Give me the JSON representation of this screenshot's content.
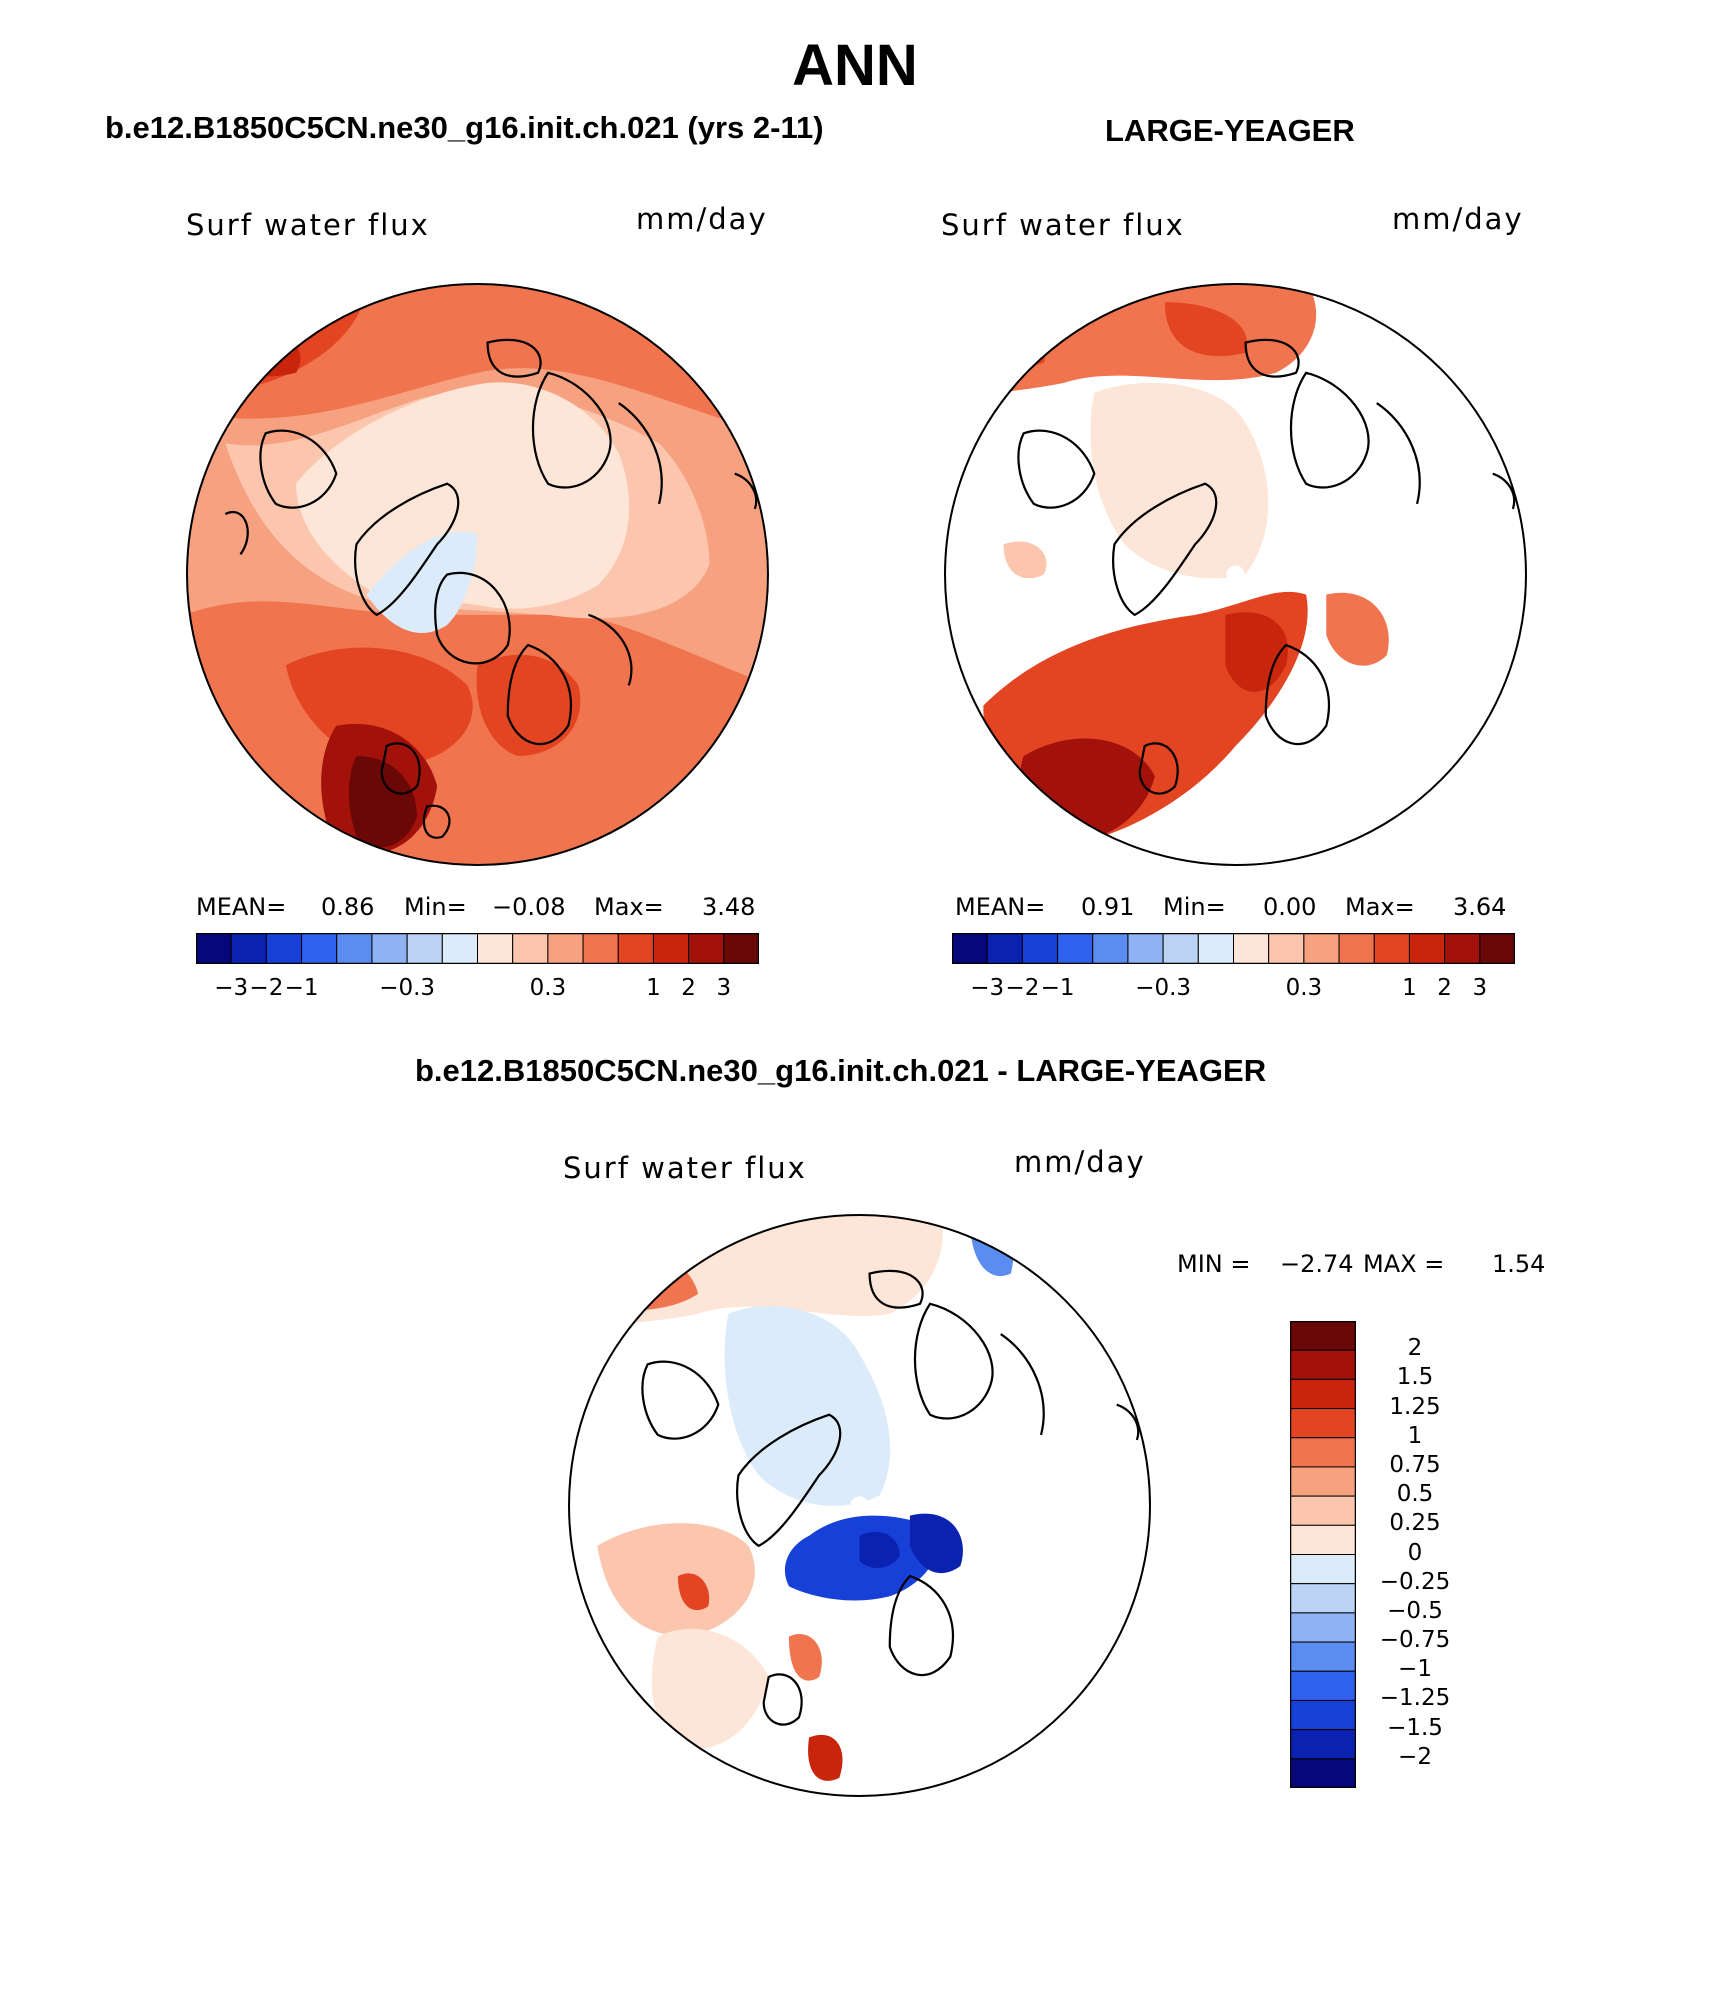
{
  "page": {
    "title": "ANN",
    "header_left": "b.e12.B1850C5CN.ne30_g16.init.ch.021 (yrs 2-11)",
    "header_right": "LARGE-YEAGER",
    "header_diff": "b.e12.B1850C5CN.ne30_g16.init.ch.021 - LARGE-YEAGER"
  },
  "panels": [
    {
      "variable": "Surf water flux",
      "units": "mm/day",
      "stats": {
        "mean_label": "MEAN=",
        "mean": "0.86",
        "min_label": "Min=",
        "min": "−0.08",
        "max_label": "Max=",
        "max": "3.48"
      }
    },
    {
      "variable": "Surf water flux",
      "units": "mm/day",
      "stats": {
        "mean_label": "MEAN=",
        "mean": "0.91",
        "min_label": "Min=",
        "min": "0.00",
        "max_label": "Max=",
        "max": "3.64"
      }
    },
    {
      "variable": "Surf water flux",
      "units": "mm/day",
      "stats": {
        "min_label": "MIN =",
        "min": "−2.74",
        "max_label": "MAX =",
        "max": "1.54"
      }
    }
  ],
  "colorbar_top": {
    "colors": [
      "#06087a",
      "#0b22b0",
      "#1640d8",
      "#2f62ec",
      "#5b8cf0",
      "#8fb3f2",
      "#bcd3f5",
      "#dcebfa",
      "#fde6d8",
      "#fbc6ad",
      "#f6a17f",
      "#f0744e",
      "#e34422",
      "#c9250c",
      "#a2110a",
      "#6a0707"
    ],
    "tick_labels": [
      "−3",
      "−2",
      "−1",
      "−0.3",
      "0.3",
      "1",
      "2",
      "3"
    ]
  },
  "colorbar_diff": {
    "colors": [
      "#6a0707",
      "#a2110a",
      "#c9250c",
      "#e34422",
      "#f0744e",
      "#f6a17f",
      "#fbc6ad",
      "#fde6d8",
      "#dcebfa",
      "#bcd3f5",
      "#8fb3f2",
      "#5b8cf0",
      "#2f62ec",
      "#1640d8",
      "#0b22b0",
      "#06087a"
    ],
    "tick_labels": [
      "2",
      "1.5",
      "1.25",
      "1",
      "0.75",
      "0.5",
      "0.25",
      "0",
      "−0.25",
      "−0.5",
      "−0.75",
      "−1",
      "−1.25",
      "−1.5",
      "−2"
    ]
  }
}
